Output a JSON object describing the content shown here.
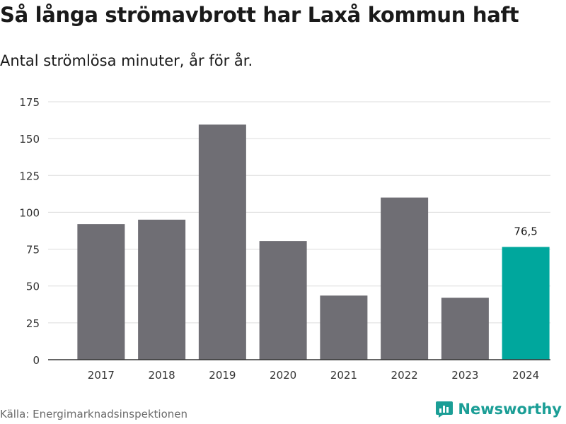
{
  "header": {
    "title": "Så långa strömavbrott har Laxå kommun haft",
    "subtitle": "Antal strömlösa minuter, år för år."
  },
  "footer": {
    "source": "Källa: Energimarknadsinspektionen",
    "brand": "Newsworthy"
  },
  "colors": {
    "bar_default": "#6f6e74",
    "bar_highlight": "#00a79d",
    "gridline": "#dcdcdc",
    "axis": "#333333",
    "brand": "#1b9e96"
  },
  "chart_data": {
    "type": "bar",
    "title": "Så långa strömavbrott har Laxå kommun haft",
    "subtitle": "Antal strömlösa minuter, år för år.",
    "xlabel": "",
    "ylabel": "",
    "categories": [
      "2017",
      "2018",
      "2019",
      "2020",
      "2021",
      "2022",
      "2023",
      "2024"
    ],
    "values": [
      92,
      95,
      159.5,
      80.5,
      43.5,
      110,
      42,
      76.5
    ],
    "highlight_index": 7,
    "data_labels": [
      {
        "index": 7,
        "text": "76,5"
      }
    ],
    "ylim": [
      0,
      175
    ],
    "yticks": [
      0,
      25,
      50,
      75,
      100,
      125,
      150,
      175
    ],
    "grid": true,
    "legend": "none"
  }
}
